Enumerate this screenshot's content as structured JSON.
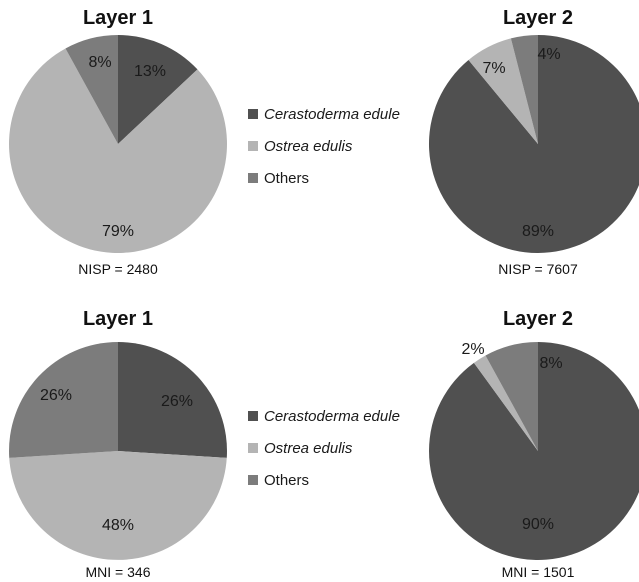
{
  "colors": {
    "Cerastoderma edule": "#505050",
    "Ostrea edulis": "#b4b4b4",
    "Others": "#7c7c7c"
  },
  "legend": [
    {
      "label": "Cerastoderma edule",
      "italic": true
    },
    {
      "label": "Ostrea edulis",
      "italic": true
    },
    {
      "label": "Others",
      "italic": false
    }
  ],
  "chart_data": [
    {
      "type": "pie",
      "title": "Layer 1",
      "caption": "NISP = 2480",
      "slices": [
        {
          "label": "Cerastoderma edule",
          "value": 13,
          "text": "13%"
        },
        {
          "label": "Ostrea edulis",
          "value": 79,
          "text": "79%"
        },
        {
          "label": "Others",
          "value": 8,
          "text": "8%"
        }
      ]
    },
    {
      "type": "pie",
      "title": "Layer 2",
      "caption": "NISP = 7607",
      "slices": [
        {
          "label": "Cerastoderma edule",
          "value": 89,
          "text": "89%"
        },
        {
          "label": "Ostrea edulis",
          "value": 7,
          "text": "7%"
        },
        {
          "label": "Others",
          "value": 4,
          "text": "4%"
        }
      ]
    },
    {
      "type": "pie",
      "title": "Layer 1",
      "caption": "MNI = 346",
      "slices": [
        {
          "label": "Cerastoderma edule",
          "value": 26,
          "text": "26%"
        },
        {
          "label": "Ostrea edulis",
          "value": 48,
          "text": "48%"
        },
        {
          "label": "Others",
          "value": 26,
          "text": "26%"
        }
      ]
    },
    {
      "type": "pie",
      "title": "Layer 2",
      "caption": "MNI = 1501",
      "slices": [
        {
          "label": "Cerastoderma edule",
          "value": 90,
          "text": "90%"
        },
        {
          "label": "Ostrea edulis",
          "value": 2,
          "text": "2%"
        },
        {
          "label": "Others",
          "value": 8,
          "text": "8%"
        }
      ]
    }
  ]
}
